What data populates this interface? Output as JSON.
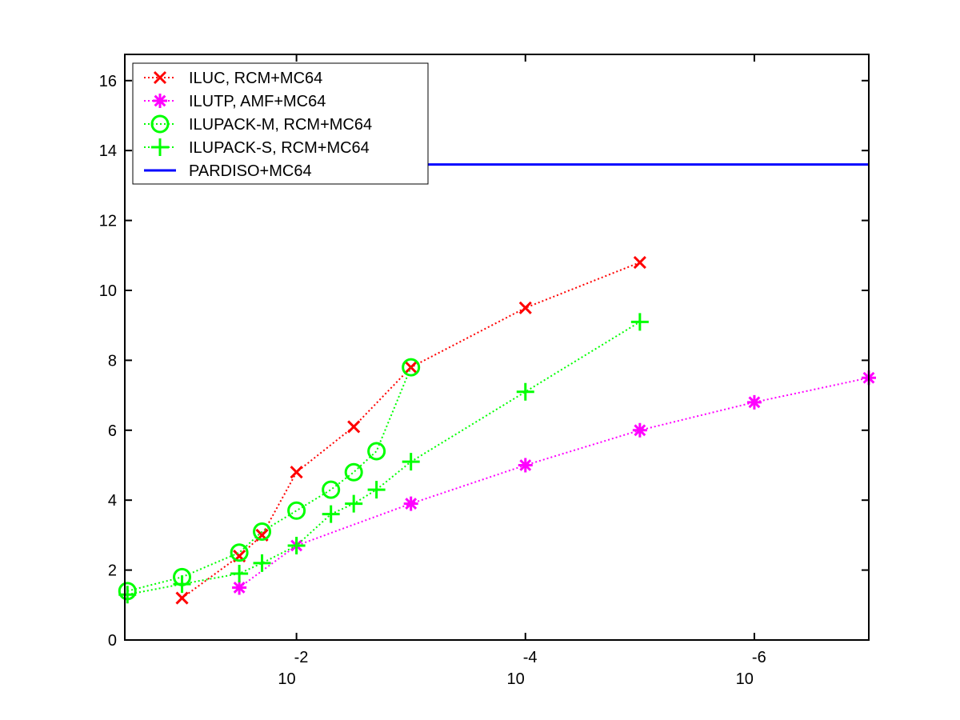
{
  "chart_data": {
    "type": "line",
    "xscale": "log",
    "x_reversed": true,
    "xlim": [
      0.3162,
      1e-07
    ],
    "ylim": [
      0,
      16.75
    ],
    "yticks": [
      0,
      2,
      4,
      6,
      8,
      10,
      12,
      14,
      16
    ],
    "xticks": [
      {
        "value": 0.01,
        "base": "10",
        "exp": "-2"
      },
      {
        "value": 0.0001,
        "base": "10",
        "exp": "-4"
      },
      {
        "value": 1e-06,
        "base": "10",
        "exp": "-6"
      }
    ],
    "grid": false,
    "legend_position": "top-left",
    "series": [
      {
        "name": "ILUC, RCM+MC64",
        "color": "#ff0000",
        "marker": "x",
        "line_style": "dotted",
        "x": [
          0.1,
          0.0316,
          0.02,
          0.01,
          0.00316,
          0.001,
          0.0001,
          1e-05
        ],
        "y": [
          1.2,
          2.4,
          3.0,
          4.8,
          6.1,
          7.8,
          9.5,
          10.8
        ]
      },
      {
        "name": "ILUTP, AMF+MC64",
        "color": "#ff00ff",
        "marker": "asterisk",
        "line_style": "dotted",
        "x": [
          0.0316,
          0.01,
          0.001,
          0.0001,
          1e-05,
          1e-06,
          1e-07
        ],
        "y": [
          1.5,
          2.7,
          3.9,
          5.0,
          6.0,
          6.8,
          7.5
        ]
      },
      {
        "name": "ILUPACK-M, RCM+MC64",
        "color": "#00ff00",
        "marker": "circle",
        "line_style": "dotted",
        "x": [
          0.3,
          0.1,
          0.0316,
          0.02,
          0.01,
          0.005,
          0.00316,
          0.002,
          0.001
        ],
        "y": [
          1.4,
          1.8,
          2.5,
          3.1,
          3.7,
          4.3,
          4.8,
          5.4,
          7.8
        ]
      },
      {
        "name": "ILUPACK-S, RCM+MC64",
        "color": "#00ff00",
        "marker": "plus",
        "line_style": "dotted",
        "x": [
          0.3,
          0.1,
          0.0316,
          0.02,
          0.01,
          0.005,
          0.00316,
          0.002,
          0.001,
          0.0001,
          1e-05
        ],
        "y": [
          1.3,
          1.6,
          1.9,
          2.2,
          2.7,
          3.6,
          3.9,
          4.3,
          5.1,
          7.1,
          9.1
        ]
      },
      {
        "name": "PARDISO+MC64",
        "color": "#0000ff",
        "marker": "none",
        "line_style": "solid",
        "x": [
          0.001,
          1e-07
        ],
        "y": [
          13.6,
          13.6
        ]
      }
    ]
  }
}
